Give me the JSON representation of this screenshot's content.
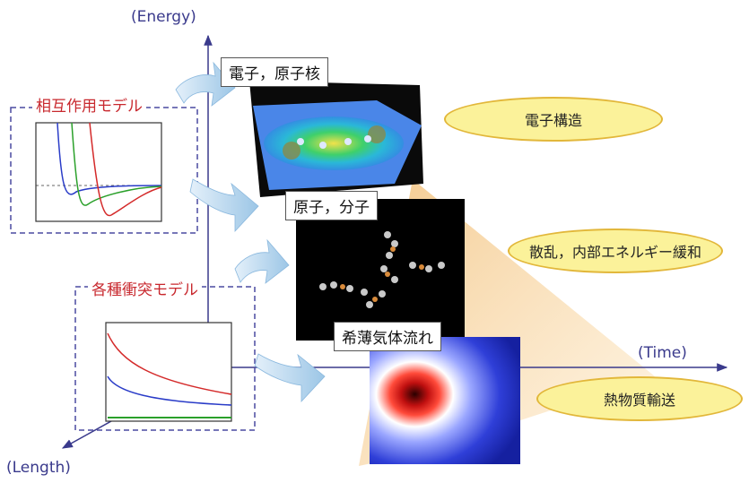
{
  "axes": {
    "energy_label": "(Energy)",
    "time_label": "(Time)",
    "length_label": "(Length)"
  },
  "models": {
    "interaction": "相互作用モデル",
    "collision": "各種衝突モデル"
  },
  "scales": {
    "electron": "電子，原子核",
    "atom": "原子，分子",
    "gas": "希薄気体流れ"
  },
  "phenomena": {
    "electronic_structure": "電子構造",
    "scattering": "散乱，内部エネルギー緩和",
    "transport": "熱物質輸送"
  },
  "colors": {
    "axis": "#3a3a8c",
    "model_title": "#c8282e",
    "ellipse_fill": "#fbf29a",
    "ellipse_border": "#e2b73a",
    "arrow": "#bcd8ee"
  },
  "icons": {
    "axis_arrows": "arrow-icon",
    "flow_arrows": "curved-arrow-icon"
  }
}
